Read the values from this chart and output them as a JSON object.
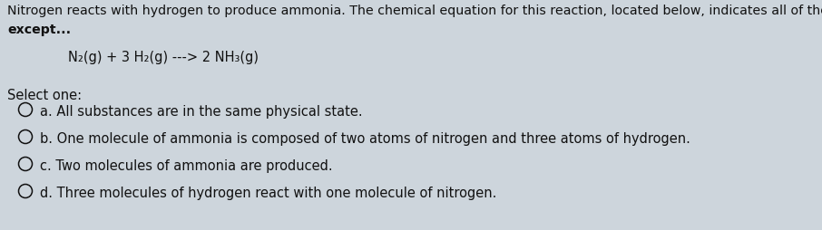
{
  "background_color": "#cdd5dc",
  "stripe_color": "#c4cdd5",
  "text_color": "#111111",
  "title_line1": "Nitrogen reacts with hydrogen to produce ammonia. The chemical equation for this reaction, located below, indicates all of the following information",
  "title_line2": "except...",
  "equation": "N₂(g) + 3 H₂(g) ---> 2 NH₃(g)",
  "select_label": "Select one:",
  "options": [
    "a. All substances are in the same physical state.",
    "b. One molecule of ammonia is composed of two atoms of nitrogen and three atoms of hydrogen.",
    "c. Two molecules of ammonia are produced.",
    "d. Three molecules of hydrogen react with one molecule of nitrogen."
  ],
  "title_fontsize": 10.2,
  "equation_fontsize": 10.5,
  "option_fontsize": 10.5,
  "select_fontsize": 10.5,
  "figwidth": 9.06,
  "figheight": 2.55,
  "dpi": 100
}
